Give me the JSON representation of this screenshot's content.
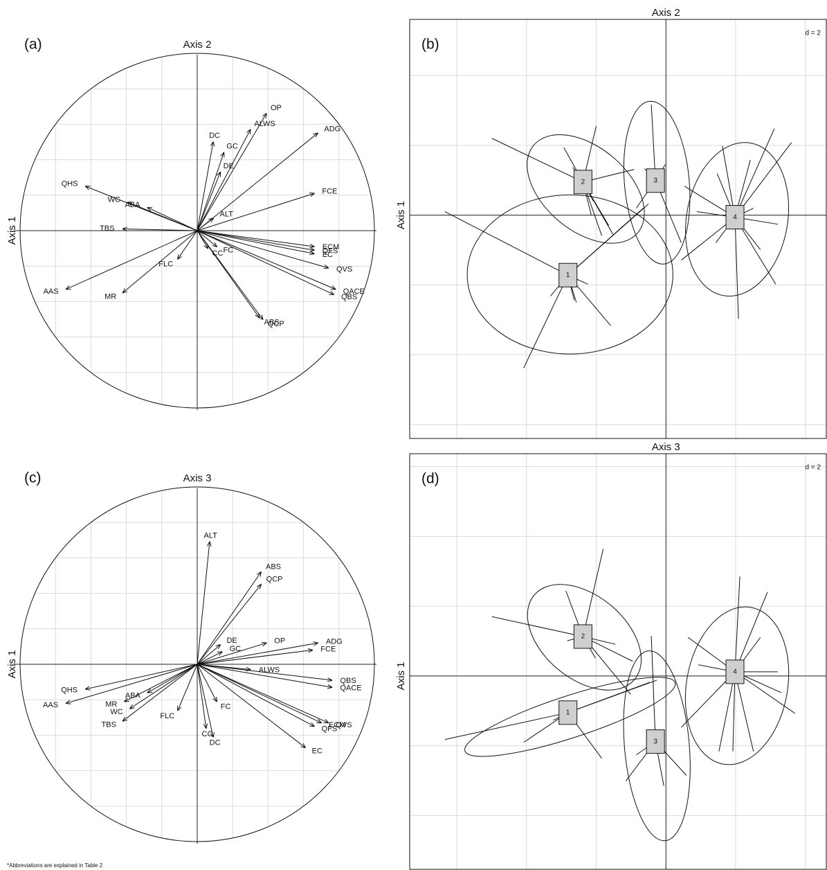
{
  "chart_data": [
    {
      "type": "correlation_circle",
      "panel": "(a)",
      "top_label": "Axis 2",
      "side_label": "Axis 1",
      "xlim": [
        -1,
        1
      ],
      "ylim": [
        -1,
        1
      ],
      "grid_step": 0.2,
      "variables": [
        {
          "name": "QHS",
          "x": -0.63,
          "y": 0.25
        },
        {
          "name": "WC",
          "x": -0.39,
          "y": 0.16
        },
        {
          "name": "ABA",
          "x": -0.28,
          "y": 0.13
        },
        {
          "name": "TBS",
          "x": -0.42,
          "y": 0.01
        },
        {
          "name": "AAS",
          "x": -0.74,
          "y": -0.33
        },
        {
          "name": "MR",
          "x": -0.42,
          "y": -0.35
        },
        {
          "name": "FLC",
          "x": -0.11,
          "y": -0.16
        },
        {
          "name": "CC",
          "x": 0.06,
          "y": -0.1
        },
        {
          "name": "FC",
          "x": 0.11,
          "y": -0.09
        },
        {
          "name": "QCP",
          "x": 0.37,
          "y": -0.5
        },
        {
          "name": "ABS",
          "x": 0.35,
          "y": -0.49
        },
        {
          "name": "QBS",
          "x": 0.77,
          "y": -0.36
        },
        {
          "name": "QACE",
          "x": 0.78,
          "y": -0.33
        },
        {
          "name": "QVS",
          "x": 0.74,
          "y": -0.21
        },
        {
          "name": "EC",
          "x": 0.66,
          "y": -0.13
        },
        {
          "name": "QFS",
          "x": 0.66,
          "y": -0.11
        },
        {
          "name": "ECM",
          "x": 0.66,
          "y": -0.09
        },
        {
          "name": "FCE",
          "x": 0.66,
          "y": 0.21
        },
        {
          "name": "ADG",
          "x": 0.68,
          "y": 0.55
        },
        {
          "name": "OP",
          "x": 0.39,
          "y": 0.66
        },
        {
          "name": "ALWS",
          "x": 0.3,
          "y": 0.57
        },
        {
          "name": "GC",
          "x": 0.15,
          "y": 0.44
        },
        {
          "name": "DC",
          "x": 0.09,
          "y": 0.5
        },
        {
          "name": "DE",
          "x": 0.13,
          "y": 0.33
        },
        {
          "name": "ALT",
          "x": 0.09,
          "y": 0.07
        }
      ]
    },
    {
      "type": "cluster",
      "panel": "(b)",
      "top_label": "Axis 2",
      "side_label": "Axis 1",
      "grid": {
        "value": 2,
        "label": "d = 2"
      },
      "xlim": [
        -7.35,
        4.6
      ],
      "ylim": [
        -6.4,
        5.6
      ],
      "clusters": [
        {
          "label": "1",
          "x": -2.81,
          "y": -1.72,
          "ellipse": {
            "cx": -2.75,
            "cy": -1.7,
            "rx": 2.95,
            "ry": 2.28,
            "angle": 0
          },
          "points": {
            "x": [
              -6.34,
              -4.08,
              -1.58,
              -2.57,
              -3.31,
              -0.5,
              -0.65,
              -2.24,
              -2.63
            ],
            "y": [
              0.1,
              -4.38,
              -3.17,
              -2.5,
              -2.32,
              0.32,
              0.2,
              -1.98,
              -2.44
            ]
          }
        },
        {
          "label": "2",
          "x": -2.38,
          "y": 0.95,
          "ellipse": {
            "cx": -2.3,
            "cy": 0.75,
            "rx": 1.95,
            "ry": 1.2,
            "angle": -40
          },
          "points": {
            "x": [
              -4.99,
              -2.0,
              -2.93,
              -2.67,
              -0.91,
              -1.64,
              -1.84,
              -2.08,
              -2.14,
              -1.52
            ],
            "y": [
              2.2,
              2.55,
              1.94,
              1.37,
              1.31,
              -0.3,
              -0.59,
              0.4,
              0,
              -0.55
            ]
          }
        },
        {
          "label": "3",
          "x": -0.3,
          "y": 0.99,
          "ellipse": {
            "cx": -0.26,
            "cy": 0.93,
            "rx": 0.93,
            "ry": 2.34,
            "angle": 5
          },
          "points": {
            "x": [
              -0.42,
              -0.61,
              -0.02,
              0.44,
              -0.85
            ],
            "y": [
              3.17,
              1.33,
              1.45,
              -0.79,
              0.2
            ]
          }
        },
        {
          "label": "4",
          "x": 1.98,
          "y": -0.06,
          "ellipse": {
            "cx": 2.04,
            "cy": -0.12,
            "rx": 1.45,
            "ry": 2.22,
            "angle": -10
          },
          "points": {
            "x": [
              3.11,
              1.62,
              2.42,
              0.53,
              0.44,
              2.08,
              3.15,
              3.21,
              0.89,
              1.47,
              1.43,
              2.51,
              2.71,
              3.6
            ],
            "y": [
              2.48,
              1.98,
              1.58,
              0.83,
              -1.29,
              -2.97,
              -1.98,
              -0.26,
              0.1,
              1.19,
              -0.79,
              0.2,
              -0.99,
              2.08
            ]
          }
        }
      ]
    },
    {
      "type": "correlation_circle",
      "panel": "(c)",
      "top_label": "Axis 3",
      "side_label": "Axis 1",
      "xlim": [
        -1,
        1
      ],
      "ylim": [
        -1,
        1
      ],
      "grid_step": 0.2,
      "variables": [
        {
          "name": "ALT",
          "x": 0.07,
          "y": 0.69
        },
        {
          "name": "ABS",
          "x": 0.36,
          "y": 0.52
        },
        {
          "name": "QCP",
          "x": 0.36,
          "y": 0.45
        },
        {
          "name": "DE",
          "x": 0.13,
          "y": 0.11
        },
        {
          "name": "GC",
          "x": 0.14,
          "y": 0.07
        },
        {
          "name": "OP",
          "x": 0.39,
          "y": 0.12
        },
        {
          "name": "ADG",
          "x": 0.68,
          "y": 0.12
        },
        {
          "name": "FCE",
          "x": 0.65,
          "y": 0.08
        },
        {
          "name": "ALWS",
          "x": 0.3,
          "y": -0.03
        },
        {
          "name": "QBS",
          "x": 0.76,
          "y": -0.09
        },
        {
          "name": "QACE",
          "x": 0.76,
          "y": -0.13
        },
        {
          "name": "QVS",
          "x": 0.74,
          "y": -0.33
        },
        {
          "name": "ECM",
          "x": 0.7,
          "y": -0.33
        },
        {
          "name": "QFS",
          "x": 0.66,
          "y": -0.35
        },
        {
          "name": "EC",
          "x": 0.61,
          "y": -0.47
        },
        {
          "name": "FC",
          "x": 0.11,
          "y": -0.21
        },
        {
          "name": "CC",
          "x": 0.05,
          "y": -0.36
        },
        {
          "name": "DC",
          "x": 0.09,
          "y": -0.41
        },
        {
          "name": "FLC",
          "x": -0.11,
          "y": -0.26
        },
        {
          "name": "ABA",
          "x": -0.28,
          "y": -0.16
        },
        {
          "name": "MR",
          "x": -0.41,
          "y": -0.21
        },
        {
          "name": "WC",
          "x": -0.38,
          "y": -0.25
        },
        {
          "name": "TBS",
          "x": -0.42,
          "y": -0.32
        },
        {
          "name": "QHS",
          "x": -0.63,
          "y": -0.14
        },
        {
          "name": "AAS",
          "x": -0.74,
          "y": -0.22
        }
      ]
    },
    {
      "type": "cluster",
      "panel": "(d)",
      "top_label": "Axis 3",
      "side_label": "Axis 1",
      "grid": {
        "value": 2,
        "label": "d = 2"
      },
      "xlim": [
        -7.35,
        4.6
      ],
      "ylim": [
        -5.54,
        6.36
      ],
      "clusters": [
        {
          "label": "1",
          "x": -2.81,
          "y": -1.05,
          "ellipse": {
            "cx": -2.75,
            "cy": -1.17,
            "rx": 3.17,
            "ry": 0.6,
            "angle": 18
          },
          "points": {
            "x": [
              -6.34,
              -4.08,
              -1.84,
              -2.63,
              -0.46,
              -0.26,
              -3.23
            ],
            "y": [
              -1.82,
              -1.9,
              -2.36,
              -1.17,
              -0.18,
              -0.12,
              -1.27
            ]
          }
        },
        {
          "label": "2",
          "x": -2.38,
          "y": 1.13,
          "ellipse": {
            "cx": -2.34,
            "cy": 1.11,
            "rx": 1.88,
            "ry": 1.19,
            "angle": -40
          },
          "points": {
            "x": [
              -4.99,
              -1.8,
              -2.87,
              -0.95,
              -1.45,
              -2.02,
              -2.83,
              -1.01
            ],
            "y": [
              1.7,
              3.64,
              2.44,
              0.42,
              0.91,
              0.51,
              1.01,
              -0.53
            ]
          }
        },
        {
          "label": "3",
          "x": -0.3,
          "y": -1.88,
          "ellipse": {
            "cx": -0.26,
            "cy": -2.0,
            "rx": 0.93,
            "ry": 2.73,
            "angle": 5
          },
          "points": {
            "x": [
              -0.42,
              -1.15,
              -0.06,
              0.59,
              -0.85
            ],
            "y": [
              1.15,
              -3.01,
              -3.15,
              -2.85,
              -2.26
            ]
          }
        },
        {
          "label": "4",
          "x": 1.98,
          "y": 0.12,
          "ellipse": {
            "cx": 2.04,
            "cy": -0.28,
            "rx": 1.45,
            "ry": 2.28,
            "angle": -10
          },
          "points": {
            "x": [
              2.12,
              2.91,
              0.63,
              0.44,
              1.52,
              2.51,
              3.7,
              3.21,
              0.93,
              2.71,
              1.92,
              3.31
            ],
            "y": [
              2.85,
              2.4,
              1.11,
              -1.47,
              -2.16,
              -2.16,
              -1.07,
              0.12,
              0.32,
              1.11,
              -2.16,
              -0.48
            ]
          }
        }
      ]
    }
  ],
  "footnote": "*Abbreviations are explained in Table 2"
}
